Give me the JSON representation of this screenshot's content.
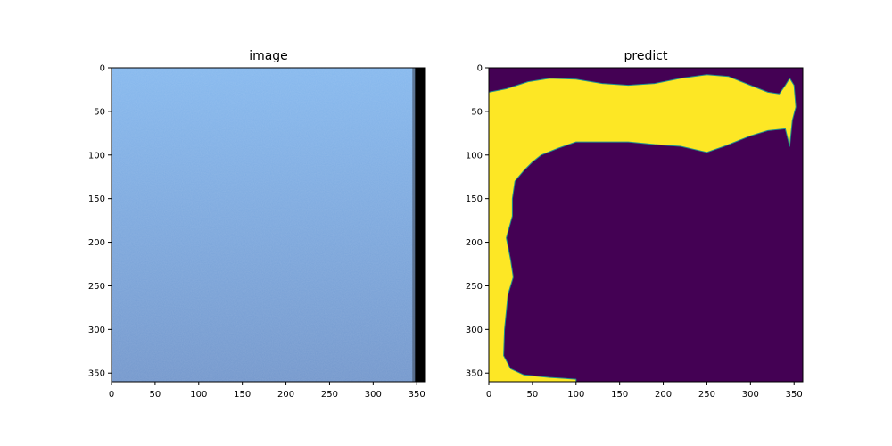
{
  "chart_data": [
    {
      "type": "heatmap",
      "title": "image",
      "xlabel": "",
      "ylabel": "",
      "xlim": [
        0,
        360
      ],
      "ylim": [
        360,
        0
      ],
      "xticks": [
        0,
        50,
        100,
        150,
        200,
        250,
        300,
        350
      ],
      "yticks": [
        0,
        50,
        100,
        150,
        200,
        250,
        300,
        350
      ],
      "content": "light blue textured surface with a dark band at the right edge",
      "colors": {
        "top": "#85b8ee",
        "bottom": "#7397cc",
        "edge_band": "#000000"
      },
      "edge_band": {
        "x_start": 348,
        "x_end": 360
      }
    },
    {
      "type": "heatmap",
      "title": "predict",
      "xlabel": "",
      "ylabel": "",
      "xlim": [
        0,
        360
      ],
      "ylim": [
        360,
        0
      ],
      "xticks": [
        0,
        50,
        100,
        150,
        200,
        250,
        300,
        350
      ],
      "yticks": [
        0,
        50,
        100,
        150,
        200,
        250,
        300,
        350
      ],
      "colors": {
        "background": "#440154",
        "mask": "#fde725",
        "boundary": "#21918c"
      },
      "mask_outline": [
        [
          0,
          28
        ],
        [
          20,
          24
        ],
        [
          45,
          16
        ],
        [
          70,
          12
        ],
        [
          100,
          13
        ],
        [
          130,
          18
        ],
        [
          160,
          20
        ],
        [
          190,
          18
        ],
        [
          220,
          12
        ],
        [
          250,
          8
        ],
        [
          275,
          10
        ],
        [
          300,
          20
        ],
        [
          320,
          28
        ],
        [
          333,
          30
        ],
        [
          340,
          20
        ],
        [
          345,
          12
        ],
        [
          350,
          20
        ],
        [
          352,
          45
        ],
        [
          348,
          60
        ],
        [
          345,
          90
        ],
        [
          340,
          70
        ],
        [
          320,
          72
        ],
        [
          300,
          78
        ],
        [
          270,
          90
        ],
        [
          250,
          97
        ],
        [
          220,
          90
        ],
        [
          190,
          88
        ],
        [
          160,
          85
        ],
        [
          130,
          85
        ],
        [
          100,
          85
        ],
        [
          80,
          92
        ],
        [
          60,
          100
        ],
        [
          50,
          108
        ],
        [
          40,
          118
        ],
        [
          30,
          130
        ],
        [
          27,
          150
        ],
        [
          27,
          170
        ],
        [
          20,
          195
        ],
        [
          25,
          220
        ],
        [
          28,
          240
        ],
        [
          22,
          260
        ],
        [
          18,
          300
        ],
        [
          17,
          330
        ],
        [
          25,
          345
        ],
        [
          40,
          352
        ],
        [
          70,
          355
        ],
        [
          100,
          357
        ],
        [
          100,
          360
        ],
        [
          0,
          360
        ]
      ]
    }
  ]
}
